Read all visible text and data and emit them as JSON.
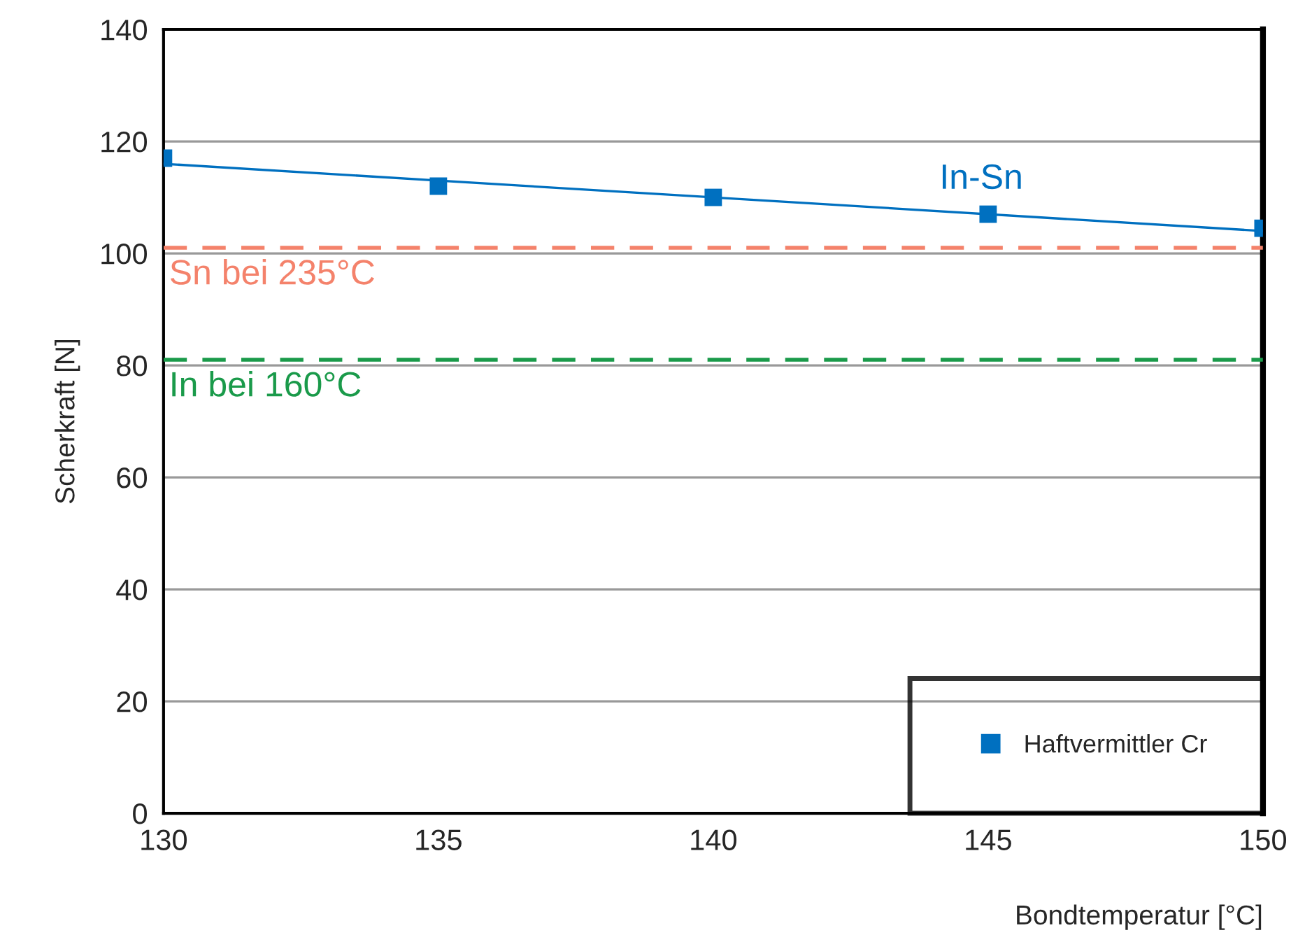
{
  "chart_data": {
    "type": "line",
    "xlabel": "Bondtemperatur [°C]",
    "ylabel": "Scherkraft [N]",
    "x": [
      130,
      135,
      140,
      145,
      150
    ],
    "series": [
      {
        "name": "Haftvermittler Cr",
        "type": "scatter",
        "marker": "square",
        "color": "#0070c0",
        "values": [
          117,
          112,
          110,
          107,
          104.5
        ]
      },
      {
        "name": "In-Sn",
        "marker": "none",
        "color": "#0070c0",
        "x": [
          130,
          150
        ],
        "values": [
          116,
          104
        ]
      }
    ],
    "xlim": [
      130,
      150
    ],
    "xticks": [
      130,
      135,
      140,
      145,
      150
    ],
    "ylim": [
      0,
      140
    ],
    "yticks": [
      0,
      20,
      40,
      60,
      80,
      100,
      120,
      140
    ],
    "ref_lines": [
      {
        "axis": "y",
        "value": 101,
        "label": "Sn bei 235°C",
        "color": "#f4826b",
        "line_style": "dashed"
      },
      {
        "axis": "y",
        "value": 81,
        "label": "In bei 160°C",
        "color": "#1a9a4a",
        "line_style": "dashed"
      }
    ],
    "grid": "y",
    "legend": "bottom right"
  }
}
